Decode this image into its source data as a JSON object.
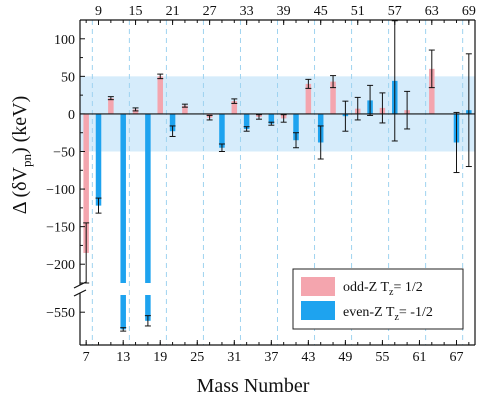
{
  "chart_data": {
    "type": "bar",
    "xlabel": "Mass Number",
    "ylabel_main": "Δ (δV",
    "ylabel_sub": "pn",
    "ylabel_end": ") (keV)",
    "x_bottom_ticks": [
      "7",
      "13",
      "19",
      "25",
      "31",
      "37",
      "43",
      "49",
      "55",
      "61",
      "67"
    ],
    "x_top_ticks": [
      "9",
      "15",
      "21",
      "27",
      "33",
      "39",
      "45",
      "51",
      "57",
      "63",
      "69"
    ],
    "x_range": [
      6,
      70
    ],
    "upper_ylim": [
      -225,
      125
    ],
    "upper_yticks": [
      "100",
      "50",
      "0",
      "-50",
      "-100",
      "-150",
      "-200"
    ],
    "lower_ylim": [
      -565,
      -540
    ],
    "lower_yticks": [
      "-550"
    ],
    "band": {
      "y1": -50,
      "y2": 50,
      "color": "#d6ecfb"
    },
    "colors": {
      "odd_z": "#f4a5ae",
      "even_z": "#1ea3ef",
      "gridline": "#9fd3f0"
    },
    "legend": {
      "odd_label": "odd-Z  T",
      "odd_sub": "z",
      "odd_value": "= 1/2",
      "even_label": "even-Z  T",
      "even_sub": "z",
      "even_value": "= -1/2",
      "position": "bottom-right"
    },
    "series": [
      {
        "name": "odd-Z Tz = 1/2",
        "points": [
          {
            "x": 7,
            "y": -185,
            "err": 40
          },
          {
            "x": 11,
            "y": 21,
            "err": 2
          },
          {
            "x": 15,
            "y": 6,
            "err": 2
          },
          {
            "x": 19,
            "y": 50,
            "err": 3
          },
          {
            "x": 23,
            "y": 11,
            "err": 2
          },
          {
            "x": 27,
            "y": -5,
            "err": 3
          },
          {
            "x": 31,
            "y": 17,
            "err": 3
          },
          {
            "x": 35,
            "y": -4,
            "err": 3
          },
          {
            "x": 39,
            "y": -6,
            "err": 5
          },
          {
            "x": 43,
            "y": 40,
            "err": 6
          },
          {
            "x": 47,
            "y": 43,
            "err": 8
          },
          {
            "x": 51,
            "y": 7,
            "err": 15
          },
          {
            "x": 55,
            "y": 8,
            "err": 20
          },
          {
            "x": 59,
            "y": 5,
            "err": 25
          },
          {
            "x": 63,
            "y": 60,
            "err": 25
          }
        ]
      },
      {
        "name": "even-Z Tz = -1/2",
        "points": [
          {
            "x": 9,
            "y": -122,
            "err": 10
          },
          {
            "x": 13,
            "y": -560,
            "err": 1
          },
          {
            "x": 17,
            "y": -555,
            "err": 3
          },
          {
            "x": 21,
            "y": -23,
            "err": 7
          },
          {
            "x": 29,
            "y": -45,
            "err": 5
          },
          {
            "x": 33,
            "y": -20,
            "err": 3
          },
          {
            "x": 37,
            "y": -13,
            "err": 2
          },
          {
            "x": 41,
            "y": -35,
            "err": 10
          },
          {
            "x": 45,
            "y": -38,
            "err": 22
          },
          {
            "x": 49,
            "y": -3,
            "err": 20
          },
          {
            "x": 53,
            "y": 18,
            "err": 20
          },
          {
            "x": 57,
            "y": 44,
            "err": 80
          },
          {
            "x": 67,
            "y": -38,
            "err": 40
          },
          {
            "x": 69,
            "y": 5,
            "err": 75
          }
        ]
      }
    ]
  }
}
